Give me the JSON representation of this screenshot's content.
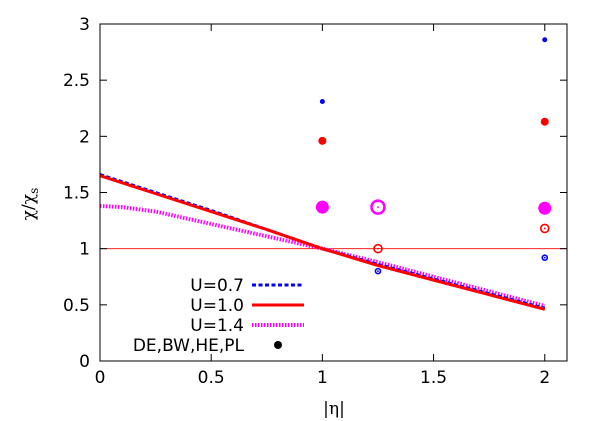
{
  "chart_data": {
    "type": "line",
    "xlabel": "|η|",
    "ylabel_main": "χ/χ",
    "ylabel_sub": "s",
    "xlim": [
      0,
      2.1
    ],
    "ylim": [
      0,
      3
    ],
    "xticks": [
      0,
      0.5,
      1,
      1.5,
      2
    ],
    "xtick_labels": [
      "0",
      "0.5",
      "1",
      "1.5",
      "2"
    ],
    "yticks": [
      0,
      0.5,
      1,
      1.5,
      2,
      2.5,
      3
    ],
    "ytick_labels": [
      "0",
      "0.5",
      "1",
      "1.5",
      "2",
      "2.5",
      "3"
    ],
    "reference_line": {
      "y": 1,
      "color": "#ff0000"
    },
    "legend_position": "bottom-left",
    "series": [
      {
        "name": "U=0.7",
        "style": "dashed",
        "color": "#0000ff",
        "x": [
          0,
          0.25,
          0.5,
          0.75,
          1.0,
          1.25,
          1.5,
          1.75,
          2.0
        ],
        "y": [
          1.66,
          1.5,
          1.34,
          1.17,
          1.0,
          0.86,
          0.73,
          0.6,
          0.47
        ]
      },
      {
        "name": "U=1.0",
        "style": "solid",
        "color": "#ff0000",
        "x": [
          0,
          0.25,
          0.5,
          0.75,
          1.0,
          1.25,
          1.5,
          1.75,
          2.0
        ],
        "y": [
          1.65,
          1.49,
          1.33,
          1.17,
          1.0,
          0.85,
          0.72,
          0.59,
          0.46
        ]
      },
      {
        "name": "U=1.4",
        "style": "dotted",
        "color": "#ff00ff",
        "x": [
          0,
          0.1,
          0.25,
          0.5,
          0.75,
          1.0,
          1.25,
          1.5,
          1.75,
          2.0
        ],
        "y": [
          1.38,
          1.37,
          1.33,
          1.22,
          1.11,
          1.0,
          0.88,
          0.75,
          0.62,
          0.49
        ]
      },
      {
        "name": "DE,BW,HE,PL",
        "style": "points",
        "color": "#000000",
        "x": [],
        "y": []
      }
    ],
    "points": [
      {
        "x": 1.0,
        "y": 2.31,
        "color": "#0000ff",
        "kind": "filled",
        "size": "small"
      },
      {
        "x": 1.0,
        "y": 1.96,
        "color": "#ff0000",
        "kind": "filled",
        "size": "medium"
      },
      {
        "x": 1.0,
        "y": 1.37,
        "color": "#ff00ff",
        "kind": "filled",
        "size": "large"
      },
      {
        "x": 1.25,
        "y": 1.37,
        "color": "#ff00ff",
        "kind": "ring",
        "size": "large"
      },
      {
        "x": 1.25,
        "y": 1.0,
        "color": "#ff0000",
        "kind": "ring",
        "size": "medium"
      },
      {
        "x": 1.25,
        "y": 0.8,
        "color": "#0000ff",
        "kind": "ring",
        "size": "small"
      },
      {
        "x": 2.0,
        "y": 2.86,
        "color": "#0000ff",
        "kind": "filled",
        "size": "small"
      },
      {
        "x": 2.0,
        "y": 2.13,
        "color": "#ff0000",
        "kind": "filled",
        "size": "medium"
      },
      {
        "x": 2.0,
        "y": 1.36,
        "color": "#ff00ff",
        "kind": "filled",
        "size": "large"
      },
      {
        "x": 2.0,
        "y": 1.18,
        "color": "#ff0000",
        "kind": "ring",
        "size": "medium"
      },
      {
        "x": 2.0,
        "y": 0.92,
        "color": "#0000ff",
        "kind": "ring",
        "size": "small"
      }
    ]
  }
}
